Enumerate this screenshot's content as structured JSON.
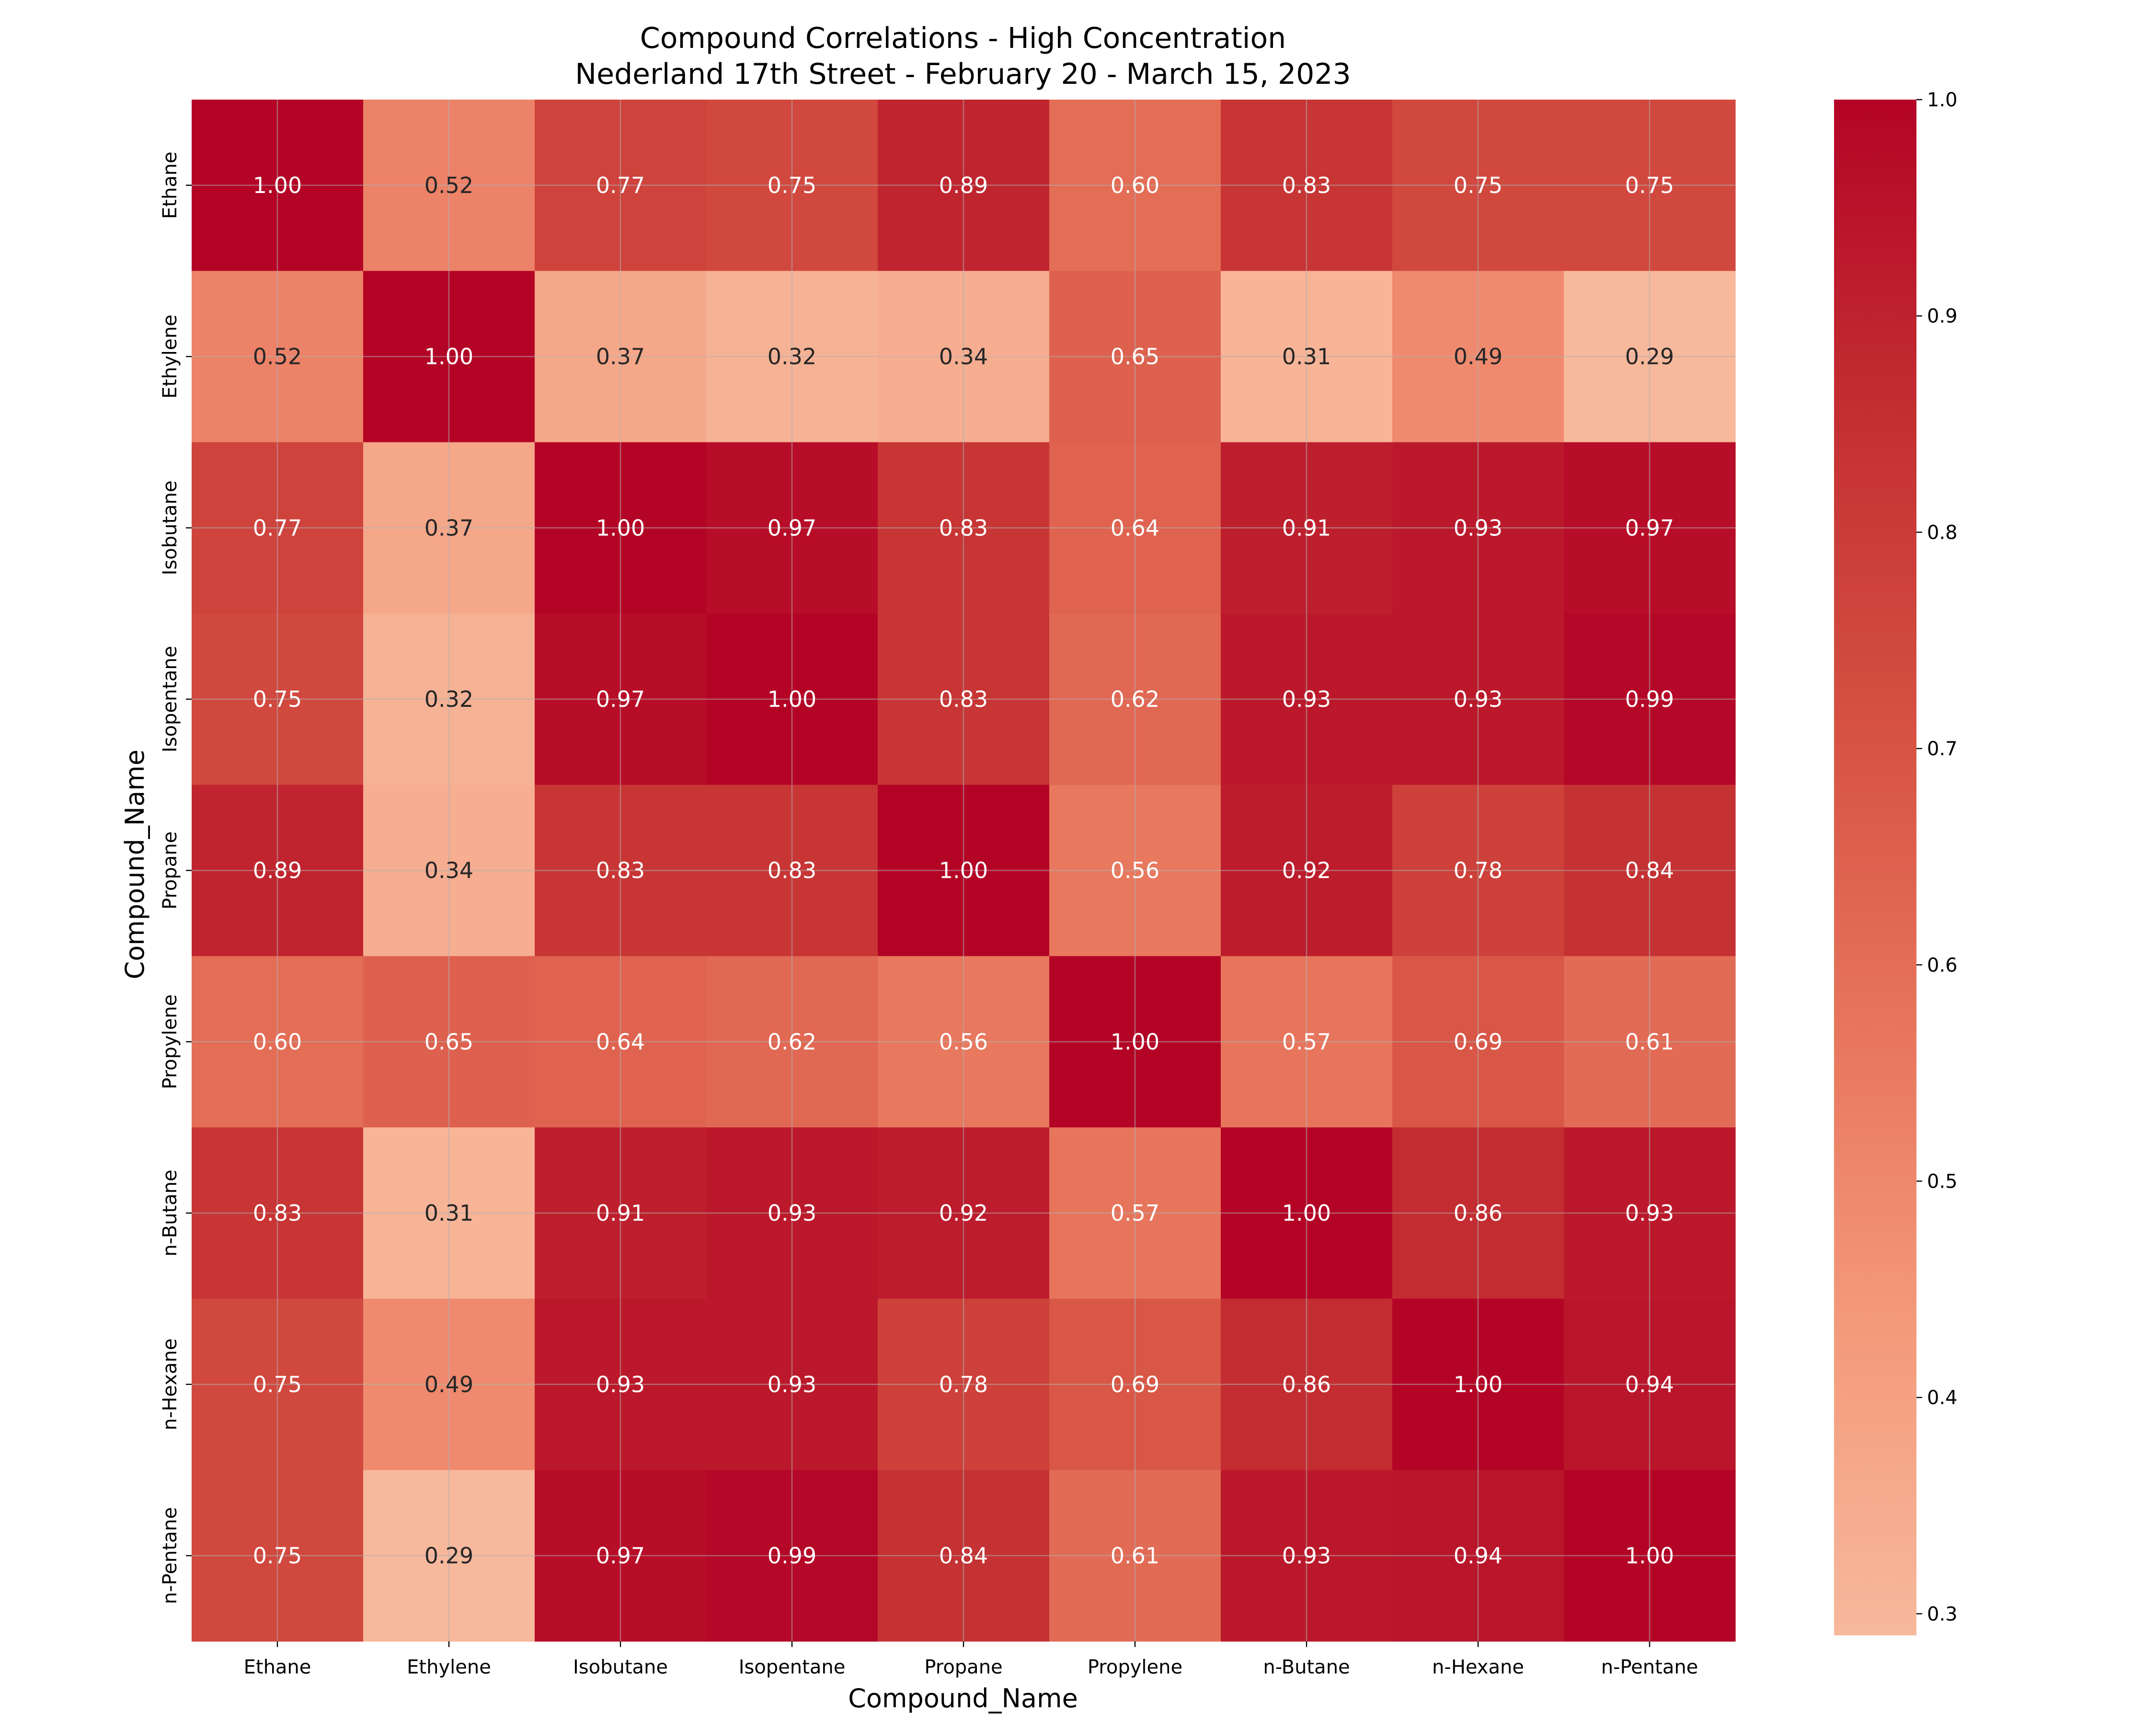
{
  "chart_data": {
    "type": "heatmap",
    "title": [
      "Compound Correlations - High Concentration",
      "Nederland 17th Street - February 20 - March 15, 2023"
    ],
    "xlabel": "Compound_Name",
    "ylabel": "Compound_Name",
    "x_categories": [
      "Ethane",
      "Ethylene",
      "Isobutane",
      "Isopentane",
      "Propane",
      "Propylene",
      "n-Butane",
      "n-Hexane",
      "n-Pentane"
    ],
    "y_categories": [
      "Ethane",
      "Ethylene",
      "Isobutane",
      "Isopentane",
      "Propane",
      "Propylene",
      "n-Butane",
      "n-Hexane",
      "n-Pentane"
    ],
    "values": [
      [
        1.0,
        0.52,
        0.77,
        0.75,
        0.89,
        0.6,
        0.83,
        0.75,
        0.75
      ],
      [
        0.52,
        1.0,
        0.37,
        0.32,
        0.34,
        0.65,
        0.31,
        0.49,
        0.29
      ],
      [
        0.77,
        0.37,
        1.0,
        0.97,
        0.83,
        0.64,
        0.91,
        0.93,
        0.97
      ],
      [
        0.75,
        0.32,
        0.97,
        1.0,
        0.83,
        0.62,
        0.93,
        0.93,
        0.99
      ],
      [
        0.89,
        0.34,
        0.83,
        0.83,
        1.0,
        0.56,
        0.92,
        0.78,
        0.84
      ],
      [
        0.6,
        0.65,
        0.64,
        0.62,
        0.56,
        1.0,
        0.57,
        0.69,
        0.61
      ],
      [
        0.83,
        0.31,
        0.91,
        0.93,
        0.92,
        0.57,
        1.0,
        0.86,
        0.93
      ],
      [
        0.75,
        0.49,
        0.93,
        0.93,
        0.78,
        0.69,
        0.86,
        1.0,
        0.94
      ],
      [
        0.75,
        0.29,
        0.97,
        0.99,
        0.84,
        0.61,
        0.93,
        0.94,
        1.0
      ]
    ],
    "value_format": "2 decimals",
    "colorbar": {
      "range": [
        0.29,
        1.0
      ],
      "ticks": [
        "0.3",
        "0.4",
        "0.5",
        "0.6",
        "0.7",
        "0.8",
        "0.9",
        "1.0"
      ],
      "colormap": "coolwarm (upper half)",
      "stops": [
        "#f7b89c",
        "#f49a7b",
        "#e7745b",
        "#d55042",
        "#c32e31",
        "#b40426"
      ]
    },
    "grid": true
  }
}
